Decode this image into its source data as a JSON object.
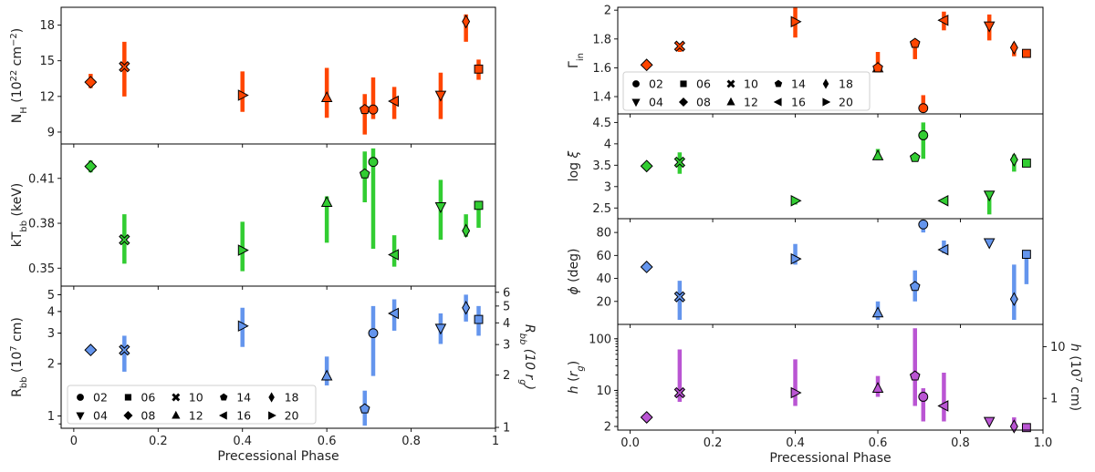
{
  "legend": {
    "entries": [
      {
        "label": "02",
        "marker": "circle"
      },
      {
        "label": "04",
        "marker": "triangle-down"
      },
      {
        "label": "06",
        "marker": "square"
      },
      {
        "label": "08",
        "marker": "diamond"
      },
      {
        "label": "10",
        "marker": "x"
      },
      {
        "label": "12",
        "marker": "triangle-up"
      },
      {
        "label": "14",
        "marker": "pentagon"
      },
      {
        "label": "16",
        "marker": "triangle-left"
      },
      {
        "label": "18",
        "marker": "thin-diamond"
      },
      {
        "label": "20",
        "marker": "triangle-right"
      }
    ]
  },
  "chart_data": [
    {
      "type": "scatter",
      "column": "left",
      "xlabel": "",
      "ylabel": "N_H (10^22 cm^-2)",
      "ylim": [
        8.0,
        19.5
      ],
      "yticks": [
        9,
        12,
        15,
        18
      ],
      "yscale": "linear",
      "color": "#ff4500",
      "points": [
        {
          "obs": "08",
          "x": 0.04,
          "y": 13.2,
          "lo": 12.7,
          "hi": 13.9
        },
        {
          "obs": "10",
          "x": 0.12,
          "y": 14.5,
          "lo": 12.0,
          "hi": 16.6
        },
        {
          "obs": "20",
          "x": 0.4,
          "y": 12.1,
          "lo": 10.7,
          "hi": 14.1
        },
        {
          "obs": "12",
          "x": 0.6,
          "y": 11.9,
          "lo": 10.2,
          "hi": 14.4
        },
        {
          "obs": "14",
          "x": 0.69,
          "y": 10.9,
          "lo": 8.8,
          "hi": 12.2
        },
        {
          "obs": "02",
          "x": 0.71,
          "y": 10.9,
          "lo": 10.1,
          "hi": 13.6
        },
        {
          "obs": "16",
          "x": 0.76,
          "y": 11.6,
          "lo": 10.1,
          "hi": 12.8
        },
        {
          "obs": "04",
          "x": 0.87,
          "y": 12.1,
          "lo": 10.1,
          "hi": 14.0
        },
        {
          "obs": "18",
          "x": 0.93,
          "y": 18.3,
          "lo": 16.6,
          "hi": 18.9
        },
        {
          "obs": "06",
          "x": 0.96,
          "y": 14.3,
          "lo": 13.4,
          "hi": 15.1
        }
      ]
    },
    {
      "type": "scatter",
      "column": "left",
      "xlabel": "",
      "ylabel": "kT_bb (keV)",
      "ylim": [
        0.338,
        0.433
      ],
      "yticks": [
        0.35,
        0.38,
        0.41
      ],
      "ytick_labels": [
        "0.35",
        "0.38",
        "0.41"
      ],
      "yscale": "linear",
      "color": "#32cd32",
      "points": [
        {
          "obs": "08",
          "x": 0.04,
          "y": 0.418,
          "lo": 0.414,
          "hi": 0.422
        },
        {
          "obs": "10",
          "x": 0.12,
          "y": 0.369,
          "lo": 0.353,
          "hi": 0.386
        },
        {
          "obs": "20",
          "x": 0.4,
          "y": 0.362,
          "lo": 0.348,
          "hi": 0.381
        },
        {
          "obs": "12",
          "x": 0.6,
          "y": 0.394,
          "lo": 0.367,
          "hi": 0.398
        },
        {
          "obs": "14",
          "x": 0.69,
          "y": 0.413,
          "lo": 0.394,
          "hi": 0.428
        },
        {
          "obs": "02",
          "x": 0.71,
          "y": 0.421,
          "lo": 0.363,
          "hi": 0.43
        },
        {
          "obs": "16",
          "x": 0.76,
          "y": 0.359,
          "lo": 0.351,
          "hi": 0.372
        },
        {
          "obs": "04",
          "x": 0.87,
          "y": 0.391,
          "lo": 0.369,
          "hi": 0.409
        },
        {
          "obs": "18",
          "x": 0.93,
          "y": 0.375,
          "lo": 0.371,
          "hi": 0.386
        },
        {
          "obs": "06",
          "x": 0.96,
          "y": 0.392,
          "lo": 0.377,
          "hi": 0.394
        }
      ]
    },
    {
      "type": "scatter",
      "column": "left",
      "xlabel": "Precessional Phase",
      "ylabel": "R_bb (10^7 cm)",
      "ylim": [
        0.85,
        5.6
      ],
      "yticks": [
        1,
        2,
        3,
        4,
        5
      ],
      "yscale": "log",
      "color": "#6495ed",
      "secondary_ylabel": "R_bb (10 r_g)",
      "secondary_yticks": [
        1,
        2,
        3,
        4,
        5,
        6
      ],
      "points": [
        {
          "obs": "08",
          "x": 0.04,
          "y": 2.4,
          "lo": 2.3,
          "hi": 2.55
        },
        {
          "obs": "10",
          "x": 0.12,
          "y": 2.4,
          "lo": 1.8,
          "hi": 2.9
        },
        {
          "obs": "20",
          "x": 0.4,
          "y": 3.3,
          "lo": 2.5,
          "hi": 4.2
        },
        {
          "obs": "12",
          "x": 0.6,
          "y": 1.7,
          "lo": 1.5,
          "hi": 2.2
        },
        {
          "obs": "14",
          "x": 0.69,
          "y": 1.1,
          "lo": 0.88,
          "hi": 1.4
        },
        {
          "obs": "02",
          "x": 0.71,
          "y": 3.0,
          "lo": 1.7,
          "hi": 4.3
        },
        {
          "obs": "16",
          "x": 0.76,
          "y": 3.9,
          "lo": 3.1,
          "hi": 4.7
        },
        {
          "obs": "04",
          "x": 0.87,
          "y": 3.2,
          "lo": 2.6,
          "hi": 3.9
        },
        {
          "obs": "18",
          "x": 0.93,
          "y": 4.2,
          "lo": 3.5,
          "hi": 5.0
        },
        {
          "obs": "06",
          "x": 0.96,
          "y": 3.6,
          "lo": 2.9,
          "hi": 4.3
        }
      ]
    },
    {
      "type": "scatter",
      "column": "right",
      "xlabel": "",
      "ylabel": "Γ_in",
      "ylim": [
        1.28,
        2.02
      ],
      "yticks": [
        1.4,
        1.6,
        1.8,
        2.0
      ],
      "ytick_labels": [
        "1.4",
        "1.6",
        "1.8",
        "2"
      ],
      "yscale": "linear",
      "color": "#ff4500",
      "points": [
        {
          "obs": "08",
          "x": 0.04,
          "y": 1.62,
          "lo": 1.61,
          "hi": 1.63
        },
        {
          "obs": "10",
          "x": 0.12,
          "y": 1.75,
          "lo": 1.71,
          "hi": 1.77
        },
        {
          "obs": "20",
          "x": 0.4,
          "y": 1.92,
          "lo": 1.81,
          "hi": 2.02
        },
        {
          "obs": "12",
          "x": 0.6,
          "y": 1.6,
          "lo": 1.57,
          "hi": 1.61
        },
        {
          "obs": "14",
          "x": 0.6,
          "y": 1.6,
          "lo": 1.57,
          "hi": 1.71
        },
        {
          "obs": "14b",
          "x": 0.69,
          "y": 1.77,
          "lo": 1.66,
          "hi": 1.79
        },
        {
          "obs": "02",
          "x": 0.71,
          "y": 1.32,
          "lo": 1.29,
          "hi": 1.41
        },
        {
          "obs": "16",
          "x": 0.76,
          "y": 1.93,
          "lo": 1.86,
          "hi": 1.99
        },
        {
          "obs": "04",
          "x": 0.87,
          "y": 1.89,
          "lo": 1.79,
          "hi": 1.97
        },
        {
          "obs": "18",
          "x": 0.93,
          "y": 1.74,
          "lo": 1.68,
          "hi": 1.77
        },
        {
          "obs": "06",
          "x": 0.96,
          "y": 1.7,
          "lo": 1.69,
          "hi": 1.71
        }
      ]
    },
    {
      "type": "scatter",
      "column": "right",
      "xlabel": "",
      "ylabel": "log ξ",
      "ylim": [
        2.25,
        4.7
      ],
      "yticks": [
        2.5,
        3.0,
        3.5,
        4.0,
        4.5
      ],
      "ytick_labels": [
        "2.5",
        "3",
        "3.5",
        "4",
        "4.5"
      ],
      "yscale": "linear",
      "color": "#32cd32",
      "points": [
        {
          "obs": "08",
          "x": 0.04,
          "y": 3.48,
          "lo": 3.44,
          "hi": 3.52
        },
        {
          "obs": "10",
          "x": 0.12,
          "y": 3.57,
          "lo": 3.3,
          "hi": 3.8
        },
        {
          "obs": "20",
          "x": 0.4,
          "y": 2.67,
          "lo": 2.58,
          "hi": 2.72
        },
        {
          "obs": "12",
          "x": 0.6,
          "y": 3.72,
          "lo": 3.62,
          "hi": 3.88
        },
        {
          "obs": "14",
          "x": 0.69,
          "y": 3.68,
          "lo": 3.66,
          "hi": 3.7
        },
        {
          "obs": "02",
          "x": 0.71,
          "y": 4.2,
          "lo": 3.65,
          "hi": 4.5
        },
        {
          "obs": "16",
          "x": 0.76,
          "y": 2.67,
          "lo": 2.64,
          "hi": 2.7
        },
        {
          "obs": "04",
          "x": 0.87,
          "y": 2.8,
          "lo": 2.35,
          "hi": 2.85
        },
        {
          "obs": "18",
          "x": 0.93,
          "y": 3.63,
          "lo": 3.35,
          "hi": 3.75
        },
        {
          "obs": "06",
          "x": 0.96,
          "y": 3.55,
          "lo": 3.5,
          "hi": 3.6
        }
      ]
    },
    {
      "type": "scatter",
      "column": "right",
      "xlabel": "",
      "ylabel": "φ (deg)",
      "ylim": [
        0,
        92
      ],
      "yticks": [
        20,
        40,
        60,
        80
      ],
      "yscale": "linear",
      "color": "#6495ed",
      "points": [
        {
          "obs": "08",
          "x": 0.04,
          "y": 50,
          "lo": 47,
          "hi": 52
        },
        {
          "obs": "10",
          "x": 0.12,
          "y": 24,
          "lo": 4,
          "hi": 38
        },
        {
          "obs": "20",
          "x": 0.4,
          "y": 57,
          "lo": 52,
          "hi": 70
        },
        {
          "obs": "12",
          "x": 0.6,
          "y": 10,
          "lo": 4,
          "hi": 20
        },
        {
          "obs": "14",
          "x": 0.69,
          "y": 33,
          "lo": 20,
          "hi": 47
        },
        {
          "obs": "02",
          "x": 0.71,
          "y": 87,
          "lo": 80,
          "hi": 90
        },
        {
          "obs": "16",
          "x": 0.76,
          "y": 65,
          "lo": 62,
          "hi": 73
        },
        {
          "obs": "04",
          "x": 0.87,
          "y": 71,
          "lo": 70,
          "hi": 72
        },
        {
          "obs": "18",
          "x": 0.93,
          "y": 22,
          "lo": 4,
          "hi": 52
        },
        {
          "obs": "06",
          "x": 0.96,
          "y": 61,
          "lo": 35,
          "hi": 63
        }
      ]
    },
    {
      "type": "scatter",
      "column": "right",
      "xlabel": "Precessional Phase",
      "ylabel": "h (r_g)",
      "ylim": [
        1.7,
        190
      ],
      "yticks": [
        2,
        10,
        100
      ],
      "yscale": "log",
      "color": "#ba55d3",
      "secondary_ylabel": "h (10^7 cm)",
      "secondary_yticks": [
        1,
        10
      ],
      "points": [
        {
          "obs": "08",
          "x": 0.04,
          "y": 3.0,
          "lo": 2.9,
          "hi": 3.1
        },
        {
          "obs": "10",
          "x": 0.12,
          "y": 9.0,
          "lo": 6.0,
          "hi": 62
        },
        {
          "obs": "20",
          "x": 0.4,
          "y": 9.0,
          "lo": 5.0,
          "hi": 40
        },
        {
          "obs": "12",
          "x": 0.6,
          "y": 11.0,
          "lo": 7.5,
          "hi": 19
        },
        {
          "obs": "14",
          "x": 0.69,
          "y": 19.0,
          "lo": 5.0,
          "hi": 160
        },
        {
          "obs": "02",
          "x": 0.71,
          "y": 7.5,
          "lo": 2.5,
          "hi": 11
        },
        {
          "obs": "16",
          "x": 0.76,
          "y": 5.0,
          "lo": 2.5,
          "hi": 22
        },
        {
          "obs": "04",
          "x": 0.87,
          "y": 2.5,
          "lo": 2.3,
          "hi": 2.7
        },
        {
          "obs": "18",
          "x": 0.93,
          "y": 2.0,
          "lo": 1.8,
          "hi": 3.0
        },
        {
          "obs": "06",
          "x": 0.96,
          "y": 1.9,
          "lo": 1.8,
          "hi": 2.0
        }
      ]
    }
  ],
  "x_axis": {
    "xlim": [
      -0.03,
      1.0
    ],
    "xticks": [
      0,
      0.2,
      0.4,
      0.6,
      0.8,
      1
    ],
    "xtick_labels": [
      "0",
      "0.2",
      "0.4",
      "0.6",
      "0.8",
      "1"
    ],
    "right_xtick_labels": [
      "0.0",
      "0.2",
      "0.4",
      "0.6",
      "0.8",
      "1.0"
    ]
  }
}
